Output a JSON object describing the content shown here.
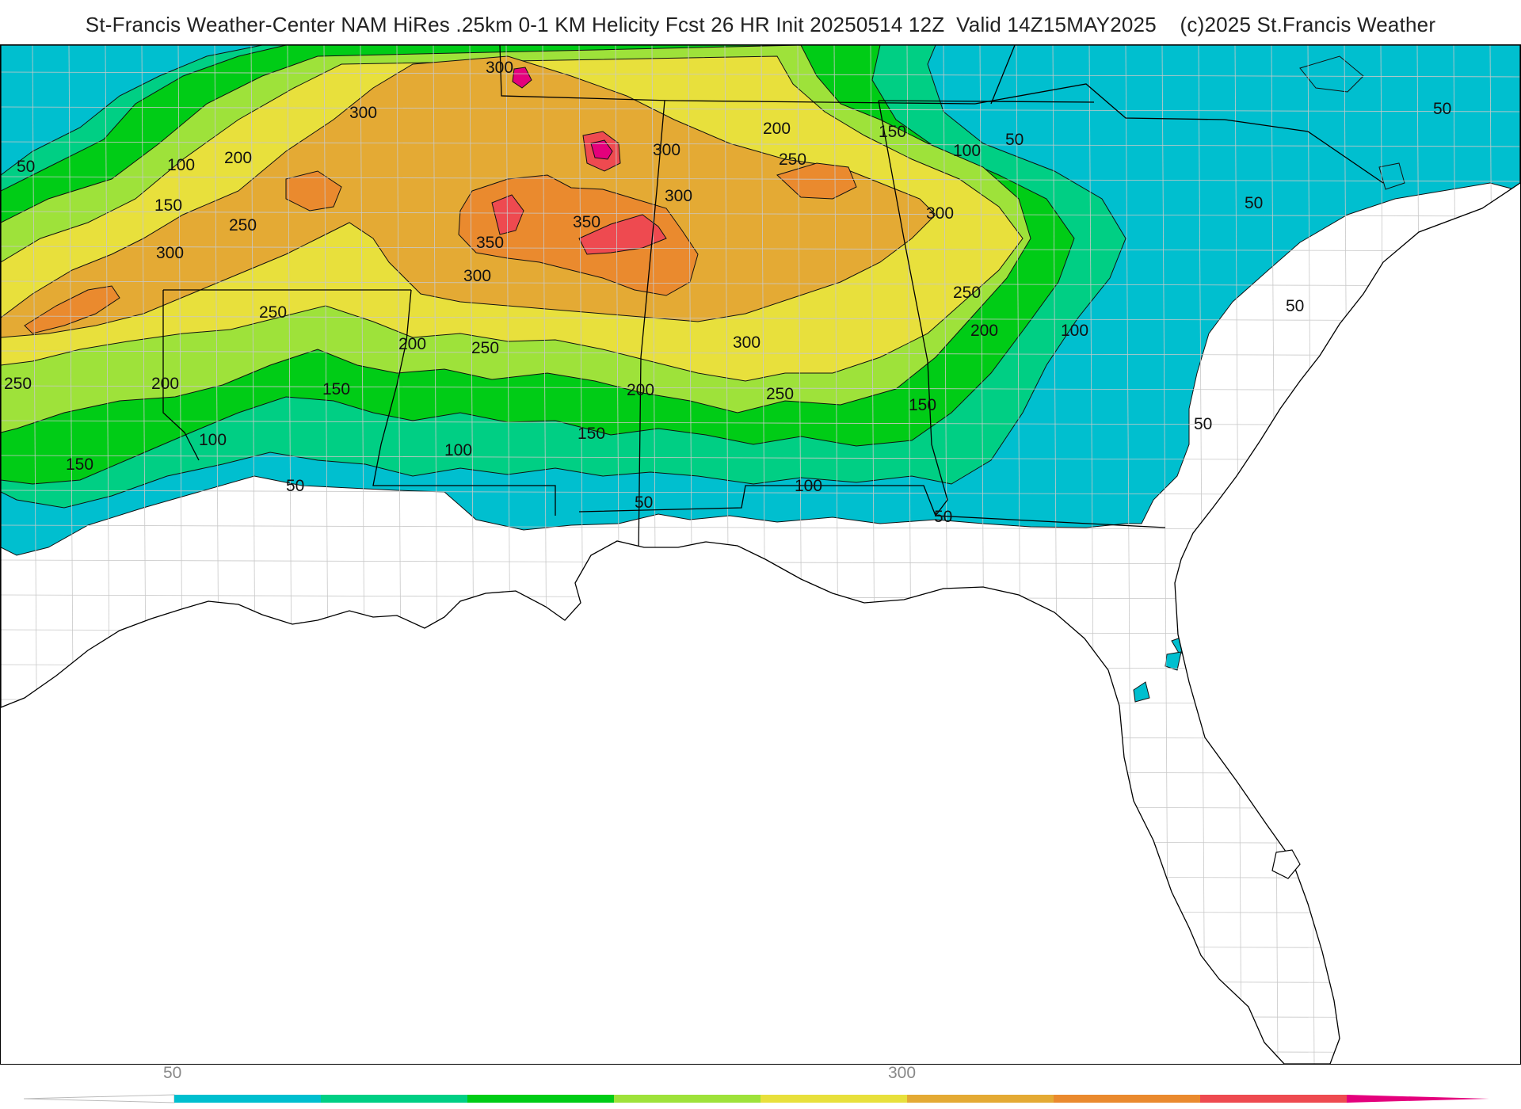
{
  "header": {
    "title": "St-Francis Weather-Center NAM HiRes .25km 0-1 KM Helicity Fcst 26 HR Init 20250514 12Z  Valid 14Z15MAY2025    (c)2025 St.Francis Weather"
  },
  "colors": {
    "levels": [
      "#00bfcf",
      "#00cf84",
      "#00cc16",
      "#9ee23a",
      "#e8e03c",
      "#e4aa34",
      "#ea8a2e",
      "#ee4a50",
      "#e4007c"
    ],
    "contour_line": "#111111",
    "state_line": "#000000",
    "county_line": "#c8c8c8",
    "background": "#ffffff"
  },
  "colorbar": {
    "ticks": [
      {
        "label": "50"
      },
      {
        "label": "300"
      }
    ]
  },
  "contour_labels": [
    {
      "text": "300"
    },
    {
      "text": "300"
    },
    {
      "text": "300"
    },
    {
      "text": "300"
    },
    {
      "text": "300"
    },
    {
      "text": "300"
    },
    {
      "text": "300"
    },
    {
      "text": "300"
    },
    {
      "text": "350"
    },
    {
      "text": "350"
    },
    {
      "text": "250"
    },
    {
      "text": "250"
    },
    {
      "text": "250"
    },
    {
      "text": "250"
    },
    {
      "text": "250"
    },
    {
      "text": "250"
    },
    {
      "text": "250"
    },
    {
      "text": "200"
    },
    {
      "text": "200"
    },
    {
      "text": "200"
    },
    {
      "text": "200"
    },
    {
      "text": "200"
    },
    {
      "text": "200"
    },
    {
      "text": "150"
    },
    {
      "text": "150"
    },
    {
      "text": "150"
    },
    {
      "text": "150"
    },
    {
      "text": "150"
    },
    {
      "text": "150"
    },
    {
      "text": "100"
    },
    {
      "text": "100"
    },
    {
      "text": "100"
    },
    {
      "text": "100"
    },
    {
      "text": "100"
    },
    {
      "text": "100"
    },
    {
      "text": "50"
    },
    {
      "text": "50"
    },
    {
      "text": "50"
    },
    {
      "text": "50"
    },
    {
      "text": "50"
    },
    {
      "text": "50"
    },
    {
      "text": "50"
    },
    {
      "text": "50"
    },
    {
      "text": "50"
    }
  ]
}
